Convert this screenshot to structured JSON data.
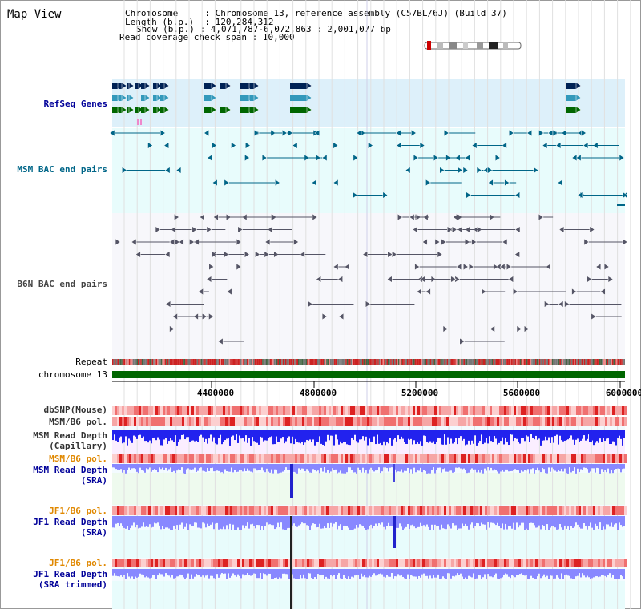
{
  "header": {
    "title": "Map View",
    "chromosome_key": "Chromosome",
    "chromosome_value": "Chromosome 13, reference assembly (C57BL/6J) (Build 37)",
    "length_key": "Length (b.p.)",
    "length_value": "120,284,312",
    "show_key": "Show (b.p.)",
    "show_value": "4,071,787-6,072,863 : 2,001,077 bp",
    "coverage_key": "Read coverage check span",
    "coverage_value": "10,000"
  },
  "tracks": {
    "refseq": "RefSeq Genes",
    "msm_bac": "MSM BAC end pairs",
    "b6n_bac": "B6N BAC end pairs",
    "repeat": "Repeat",
    "chromosome": "chromosome 13",
    "dbsnp": "dbSNP(Mouse)",
    "msm_pol": "MSM/B6 pol.",
    "msm_depth_cap_1": "MSM Read Depth",
    "msm_depth_cap_2": "(Capillary)",
    "msm_pol_sra": "MSM/B6 pol.",
    "msm_depth_sra_1": "MSM Read Depth",
    "msm_depth_sra_2": "(SRA)",
    "jf1_pol_1": "JF1/B6 pol.",
    "jf1_depth_1": "JF1 Read Depth",
    "jf1_depth_1b": "(SRA)",
    "jf1_pol_2": "JF1/B6 pol.",
    "jf1_depth_2": "JF1 Read Depth",
    "jf1_depth_2b": "(SRA trimmed)"
  },
  "axis": {
    "ticks": [
      "4400000",
      "4800000",
      "5200000",
      "5600000",
      "6000000"
    ]
  },
  "colors": {
    "refseq_bg": "#ddf0fa",
    "bac_bg": "#e8fcfc",
    "b6n_bg": "#f7f7fb",
    "chromosome": "#006600",
    "depth_blue": "#2222ee",
    "depth_light": "#8888ff",
    "pol_red": "#ee5555"
  }
}
